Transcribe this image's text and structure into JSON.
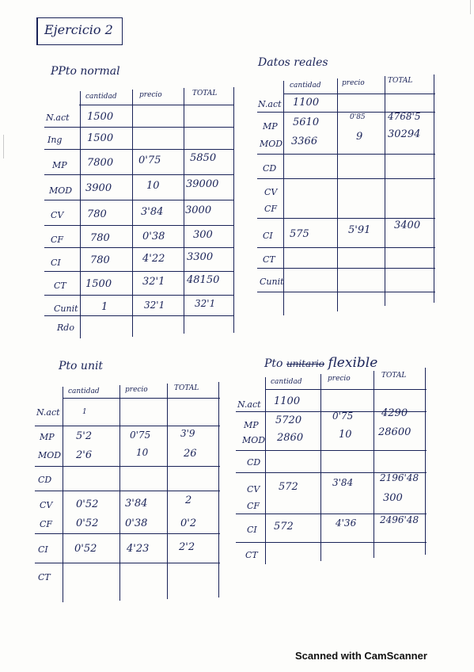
{
  "title": "Ejercicio 2",
  "footer": "Scanned with CamScanner",
  "columns": [
    "cantidad",
    "precio",
    "TOTAL"
  ],
  "t1": {
    "heading": "PPto normal",
    "rows": [
      {
        "label": "N.act",
        "c": "1500",
        "p": "",
        "t": ""
      },
      {
        "label": "Ing",
        "c": "1500",
        "p": "",
        "t": ""
      },
      {
        "label": "MP",
        "c": "7800",
        "p": "0'75",
        "t": "5850"
      },
      {
        "label": "MOD",
        "c": "3900",
        "p": "10",
        "t": "39000"
      },
      {
        "label": "CV",
        "c": "780",
        "p": "3'84",
        "t": "3000"
      },
      {
        "label": "CF",
        "c": "780",
        "p": "0'38",
        "t": "300"
      },
      {
        "label": "CI",
        "c": "780",
        "p": "4'22",
        "t": "3300"
      },
      {
        "label": "CT",
        "c": "1500",
        "p": "32'1",
        "t": "48150"
      },
      {
        "label": "Cunit",
        "c": "1",
        "p": "32'1",
        "t": "32'1"
      },
      {
        "label": "Rdo",
        "c": "",
        "p": "",
        "t": ""
      }
    ]
  },
  "t2": {
    "heading": "Datos reales",
    "rows": [
      {
        "label": "N.act",
        "c": "1100",
        "p": "",
        "t": ""
      },
      {
        "label": "MP",
        "c": "5610",
        "p": "0'85",
        "t": "4768'5"
      },
      {
        "label": "MOD",
        "c": "3366",
        "p": "9",
        "t": "30294"
      },
      {
        "label": "CD",
        "c": "",
        "p": "",
        "t": ""
      },
      {
        "label": "CV",
        "c": "",
        "p": "",
        "t": ""
      },
      {
        "label": "CF",
        "c": "",
        "p": "",
        "t": ""
      },
      {
        "label": "CI",
        "c": "575",
        "p": "5'91",
        "t": "3400"
      },
      {
        "label": "CT",
        "c": "",
        "p": "",
        "t": ""
      },
      {
        "label": "Cunit",
        "c": "",
        "p": "",
        "t": ""
      }
    ]
  },
  "t3": {
    "heading": "Pto unit",
    "rows": [
      {
        "label": "N.act",
        "c": "1",
        "p": "",
        "t": ""
      },
      {
        "label": "MP",
        "c": "5'2",
        "p": "0'75",
        "t": "3'9"
      },
      {
        "label": "MOD",
        "c": "2'6",
        "p": "10",
        "t": "26"
      },
      {
        "label": "CD",
        "c": "",
        "p": "",
        "t": ""
      },
      {
        "label": "CV",
        "c": "0'52",
        "p": "3'84",
        "t": "2"
      },
      {
        "label": "CF",
        "c": "0'52",
        "p": "0'38",
        "t": "0'2"
      },
      {
        "label": "CI",
        "c": "0'52",
        "p": "4'23",
        "t": "2'2"
      },
      {
        "label": "CT",
        "c": "",
        "p": "",
        "t": ""
      }
    ]
  },
  "t4": {
    "heading_prefix": "Pto",
    "heading_struck": "unitario",
    "heading_suffix": "flexible",
    "rows": [
      {
        "label": "N.act",
        "c": "1100",
        "p": "",
        "t": ""
      },
      {
        "label": "MP",
        "c": "5720",
        "p": "0'75",
        "t": "4290"
      },
      {
        "label": "MOD",
        "c": "2860",
        "p": "10",
        "t": "28600"
      },
      {
        "label": "CD",
        "c": "",
        "p": "",
        "t": ""
      },
      {
        "label": "CV",
        "c": "572",
        "p": "3'84",
        "t": "2196'48"
      },
      {
        "label": "CF",
        "c": "",
        "p": "",
        "t": "300"
      },
      {
        "label": "CI",
        "c": "572",
        "p": "4'36",
        "t": "2496'48"
      },
      {
        "label": "CT",
        "c": "",
        "p": "",
        "t": ""
      }
    ]
  }
}
